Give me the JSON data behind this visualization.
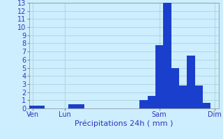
{
  "title": "",
  "xlabel": "Précipitations 24h ( mm )",
  "ylabel": "",
  "background_color": "#cceeff",
  "bar_color": "#1a3fcc",
  "grid_color": "#aacccc",
  "axis_label_color": "#3333bb",
  "tick_color": "#3333bb",
  "ylim": [
    0,
    13
  ],
  "yticks": [
    0,
    1,
    2,
    3,
    4,
    5,
    6,
    7,
    8,
    9,
    10,
    11,
    12,
    13
  ],
  "n_bars": 24,
  "bar_values": [
    0.3,
    0.3,
    0.0,
    0.0,
    0.0,
    0.5,
    0.5,
    0.0,
    0.0,
    0.0,
    0.0,
    0.0,
    0.0,
    0.0,
    1.0,
    1.5,
    7.8,
    13.0,
    5.0,
    2.8,
    6.5,
    2.8,
    0.7,
    0.0
  ],
  "xtick_positions": [
    0,
    4,
    16,
    23
  ],
  "xtick_labels": [
    "Ven",
    "Lun",
    "Sam",
    "Dim"
  ],
  "xlabel_fontsize": 8,
  "tick_fontsize": 7,
  "figsize": [
    3.2,
    2.0
  ],
  "dpi": 100
}
